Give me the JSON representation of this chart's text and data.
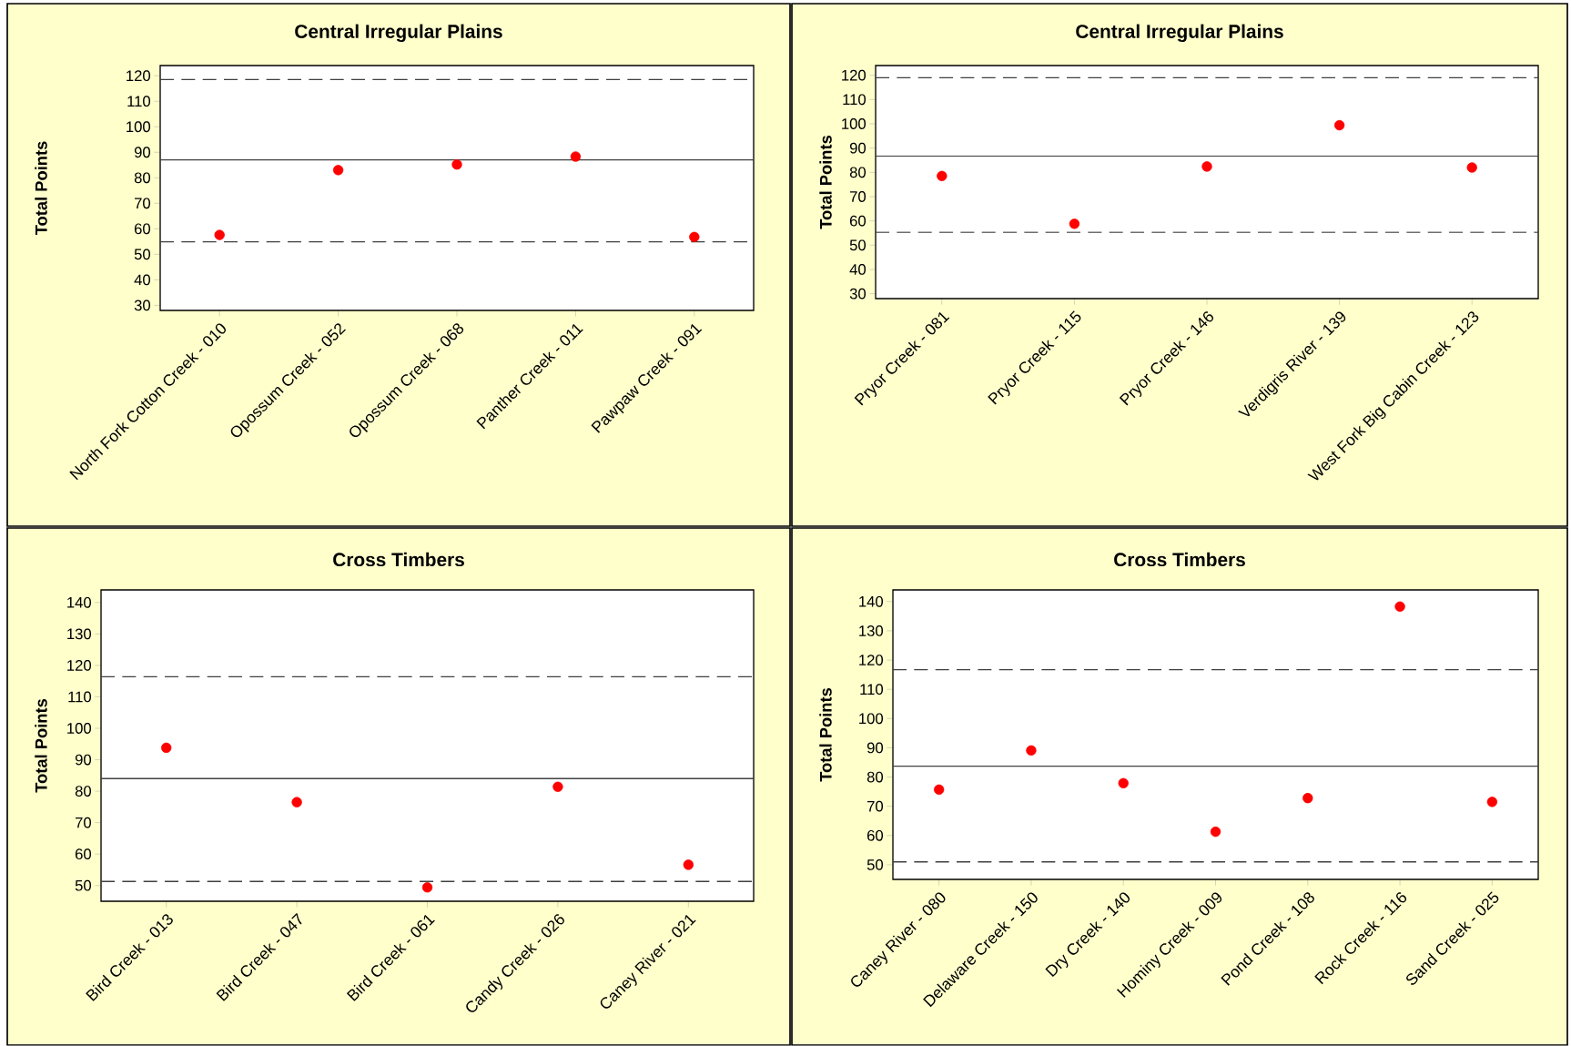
{
  "chart_data": [
    {
      "type": "scatter",
      "title": "Central Irregular Plains",
      "ylabel": "Total Points",
      "categories": [
        "North Fork Cotton Creek - 010",
        "Opossum Creek - 052",
        "Opossum Creek - 068",
        "Panther Creek - 011",
        "Pawpaw Creek - 091"
      ],
      "values": [
        57.6,
        83.0,
        85.2,
        88.3,
        56.8
      ],
      "color": "#ff0000",
      "marker": "circle",
      "ylim": [
        28,
        124
      ],
      "yticks": [
        30,
        40,
        50,
        60,
        70,
        80,
        90,
        100,
        110,
        120
      ],
      "ref_lines": [
        {
          "axis": "y",
          "value": 118.5,
          "line_style": "dashed",
          "color": "#404040"
        },
        {
          "axis": "y",
          "value": 87.0,
          "line_style": "solid",
          "color": "#404040"
        },
        {
          "axis": "y",
          "value": 54.9,
          "line_style": "dashed",
          "color": "#404040"
        }
      ]
    },
    {
      "type": "scatter",
      "title": "Central Irregular Plains",
      "ylabel": "Total Points",
      "categories": [
        "Pryor Creek - 081",
        "Pryor Creek - 115",
        "Pryor Creek - 146",
        "Verdigris River - 139",
        "West Fork Big Cabin Creek - 123"
      ],
      "values": [
        78.5,
        58.8,
        82.4,
        99.4,
        82.0
      ],
      "color": "#ff0000",
      "marker": "circle",
      "ylim": [
        28,
        124
      ],
      "yticks": [
        30,
        40,
        50,
        60,
        70,
        80,
        90,
        100,
        110,
        120
      ],
      "ref_lines": [
        {
          "axis": "y",
          "value": 119.0,
          "line_style": "dashed",
          "color": "#404040"
        },
        {
          "axis": "y",
          "value": 86.7,
          "line_style": "solid",
          "color": "#404040"
        },
        {
          "axis": "y",
          "value": 55.3,
          "line_style": "dashed",
          "color": "#404040"
        }
      ]
    },
    {
      "type": "scatter",
      "title": "Cross Timbers",
      "ylabel": "Total Points",
      "categories": [
        "Bird Creek - 013",
        "Bird Creek - 047",
        "Bird Creek - 061",
        "Candy Creek - 026",
        "Caney River - 021"
      ],
      "values": [
        93.8,
        76.5,
        49.4,
        81.4,
        56.6
      ],
      "color": "#ff0000",
      "marker": "circle",
      "ylim": [
        45,
        144
      ],
      "yticks": [
        50,
        60,
        70,
        80,
        90,
        100,
        110,
        120,
        130,
        140
      ],
      "ref_lines": [
        {
          "axis": "y",
          "value": 116.4,
          "line_style": "dashed",
          "color": "#404040"
        },
        {
          "axis": "y",
          "value": 84.0,
          "line_style": "solid",
          "color": "#404040"
        },
        {
          "axis": "y",
          "value": 51.3,
          "line_style": "dashed",
          "color": "#404040"
        }
      ]
    },
    {
      "type": "scatter",
      "title": "Cross Timbers",
      "ylabel": "Total Points",
      "categories": [
        "Caney River - 080",
        "Delaware  Creek - 150",
        "Dry Creek - 140",
        "Hominy Creek - 009",
        "Pond Creek - 108",
        "Rock Creek - 116",
        "Sand Creek - 025"
      ],
      "values": [
        75.7,
        89.1,
        77.9,
        61.3,
        72.8,
        138.3,
        71.5
      ],
      "color": "#ff0000",
      "marker": "circle",
      "ylim": [
        45,
        144
      ],
      "yticks": [
        50,
        60,
        70,
        80,
        90,
        100,
        110,
        120,
        130,
        140
      ],
      "ref_lines": [
        {
          "axis": "y",
          "value": 116.7,
          "line_style": "dashed",
          "color": "#404040"
        },
        {
          "axis": "y",
          "value": 83.7,
          "line_style": "solid",
          "color": "#404040"
        },
        {
          "axis": "y",
          "value": 51.0,
          "line_style": "dashed",
          "color": "#404040"
        }
      ]
    }
  ]
}
